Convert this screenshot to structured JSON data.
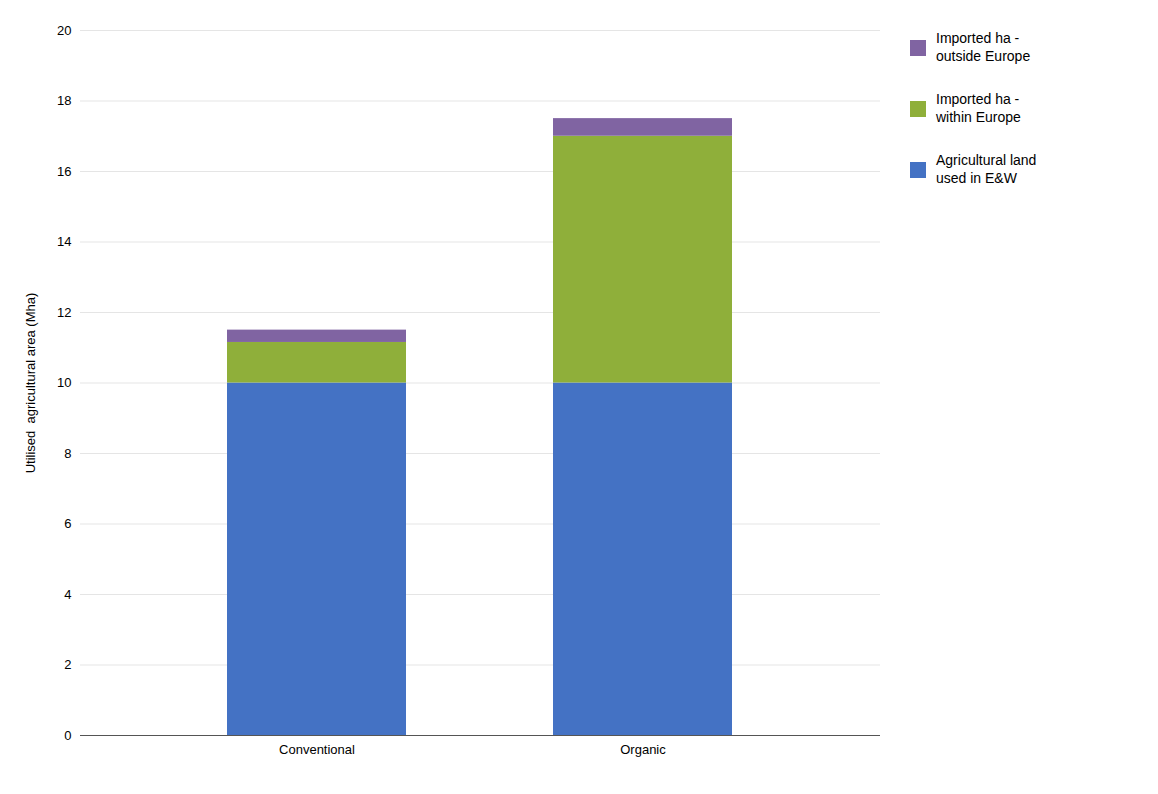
{
  "chart_data": {
    "type": "bar",
    "stacked": true,
    "categories": [
      "Conventional",
      "Organic"
    ],
    "series": [
      {
        "name": "Agricultural land\nused in E&W",
        "color": "#4472C4",
        "values": [
          10.0,
          10.0
        ]
      },
      {
        "name": "Imported ha -\nwithin Europe",
        "color": "#8FAF3A",
        "values": [
          1.15,
          7.0
        ]
      },
      {
        "name": "Imported ha -\noutside Europe",
        "color": "#8064A2",
        "values": [
          0.35,
          0.5
        ]
      }
    ],
    "y_label": "Utilised  agricultural area (Mha)",
    "ylim": [
      0,
      20
    ],
    "yticks": [
      0,
      2,
      4,
      6,
      8,
      10,
      12,
      14,
      16,
      18,
      20
    ],
    "grid": true,
    "legend": "right"
  }
}
